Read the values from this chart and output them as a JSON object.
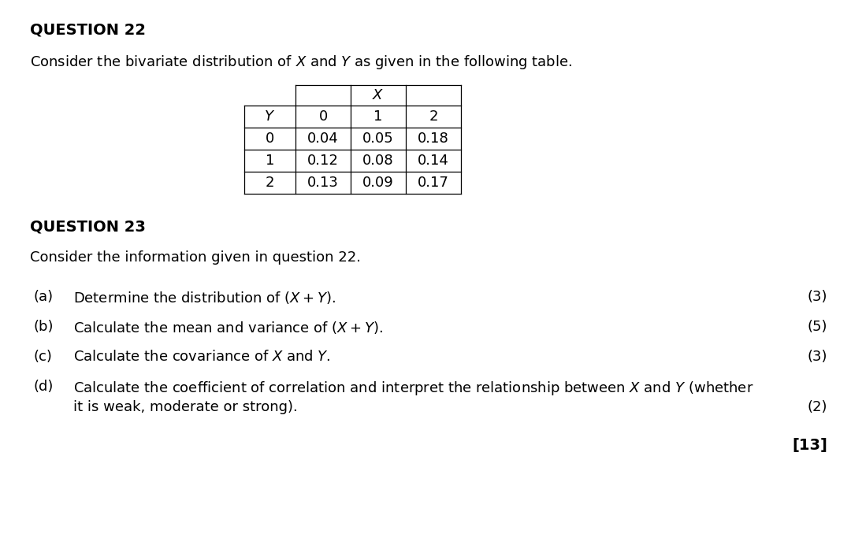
{
  "background_color": "#ffffff",
  "q22_heading": "QUESTION 22",
  "q22_intro": "Consider the bivariate distribution of $X$ and $Y$ as given in the following table.",
  "q23_heading": "QUESTION 23",
  "q23_intro": "Consider the information given in question 22.",
  "table_header_x": "$X$",
  "table_col_headers": [
    "$Y$",
    "0",
    "1",
    "2"
  ],
  "table_row_headers": [
    "0",
    "1",
    "2"
  ],
  "table_data": [
    [
      "0.04",
      "0.05",
      "0.18"
    ],
    [
      "0.12",
      "0.08",
      "0.14"
    ],
    [
      "0.13",
      "0.09",
      "0.17"
    ]
  ],
  "questions": [
    {
      "label": "(a)",
      "text": "Determine the distribution of $(X + Y)$.",
      "marks": "(3)"
    },
    {
      "label": "(b)",
      "text": "Calculate the mean and variance of $(X + Y)$.",
      "marks": "(5)"
    },
    {
      "label": "(c)",
      "text": "Calculate the covariance of $X$ and $Y$.",
      "marks": "(3)"
    },
    {
      "label": "(d)",
      "text_line1": "Calculate the coefficient of correlation and interpret the relationship between $X$ and $Y$ (whether",
      "text_line2": "it is weak, moderate or strong).",
      "marks": "(2)"
    }
  ],
  "total": "[13]",
  "font_size_heading": 14,
  "font_size_body": 13,
  "font_size_table": 12
}
